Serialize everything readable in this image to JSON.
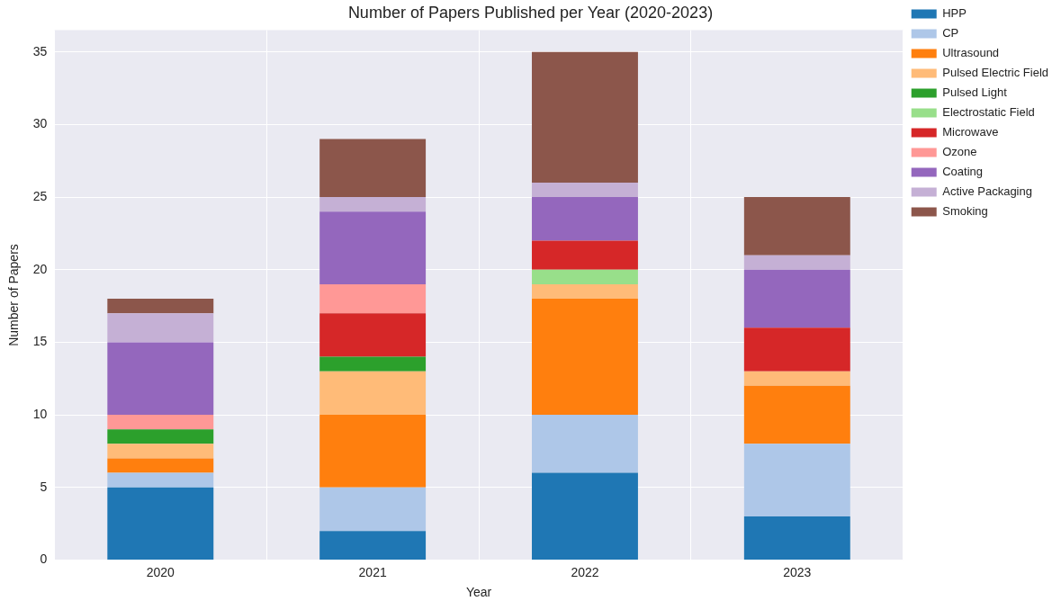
{
  "chart_data": {
    "type": "bar",
    "title": "Number of Papers Published per Year (2020-2023)",
    "xlabel": "Year",
    "ylabel": "Number of Papers",
    "categories": [
      "2020",
      "2021",
      "2022",
      "2023"
    ],
    "stacked": true,
    "ylim": [
      0,
      36.5
    ],
    "yticks": [
      0,
      5,
      10,
      15,
      20,
      25,
      30,
      35
    ],
    "grid": true,
    "legend": "right",
    "series": [
      {
        "name": "HPP",
        "color": "#1f77b4",
        "values": [
          5,
          2,
          6,
          3
        ]
      },
      {
        "name": "CP",
        "color": "#aec7e8",
        "values": [
          1,
          3,
          4,
          5
        ]
      },
      {
        "name": "Ultrasound",
        "color": "#ff7f0e",
        "values": [
          1,
          5,
          8,
          4
        ]
      },
      {
        "name": "Pulsed Electric Field",
        "color": "#ffbb78",
        "values": [
          1,
          3,
          1,
          1
        ]
      },
      {
        "name": "Pulsed Light",
        "color": "#2ca02c",
        "values": [
          1,
          1,
          0,
          0
        ]
      },
      {
        "name": "Electrostatic Field",
        "color": "#98df8a",
        "values": [
          0,
          0,
          1,
          0
        ]
      },
      {
        "name": "Microwave",
        "color": "#d62728",
        "values": [
          0,
          3,
          2,
          3
        ]
      },
      {
        "name": "Ozone",
        "color": "#ff9896",
        "values": [
          1,
          2,
          0,
          0
        ]
      },
      {
        "name": "Coating",
        "color": "#9467bd",
        "values": [
          5,
          5,
          3,
          4
        ]
      },
      {
        "name": "Active Packaging",
        "color": "#c5b0d5",
        "values": [
          2,
          1,
          1,
          1
        ]
      },
      {
        "name": "Smoking",
        "color": "#8c564b",
        "values": [
          1,
          4,
          9,
          4
        ]
      }
    ]
  }
}
